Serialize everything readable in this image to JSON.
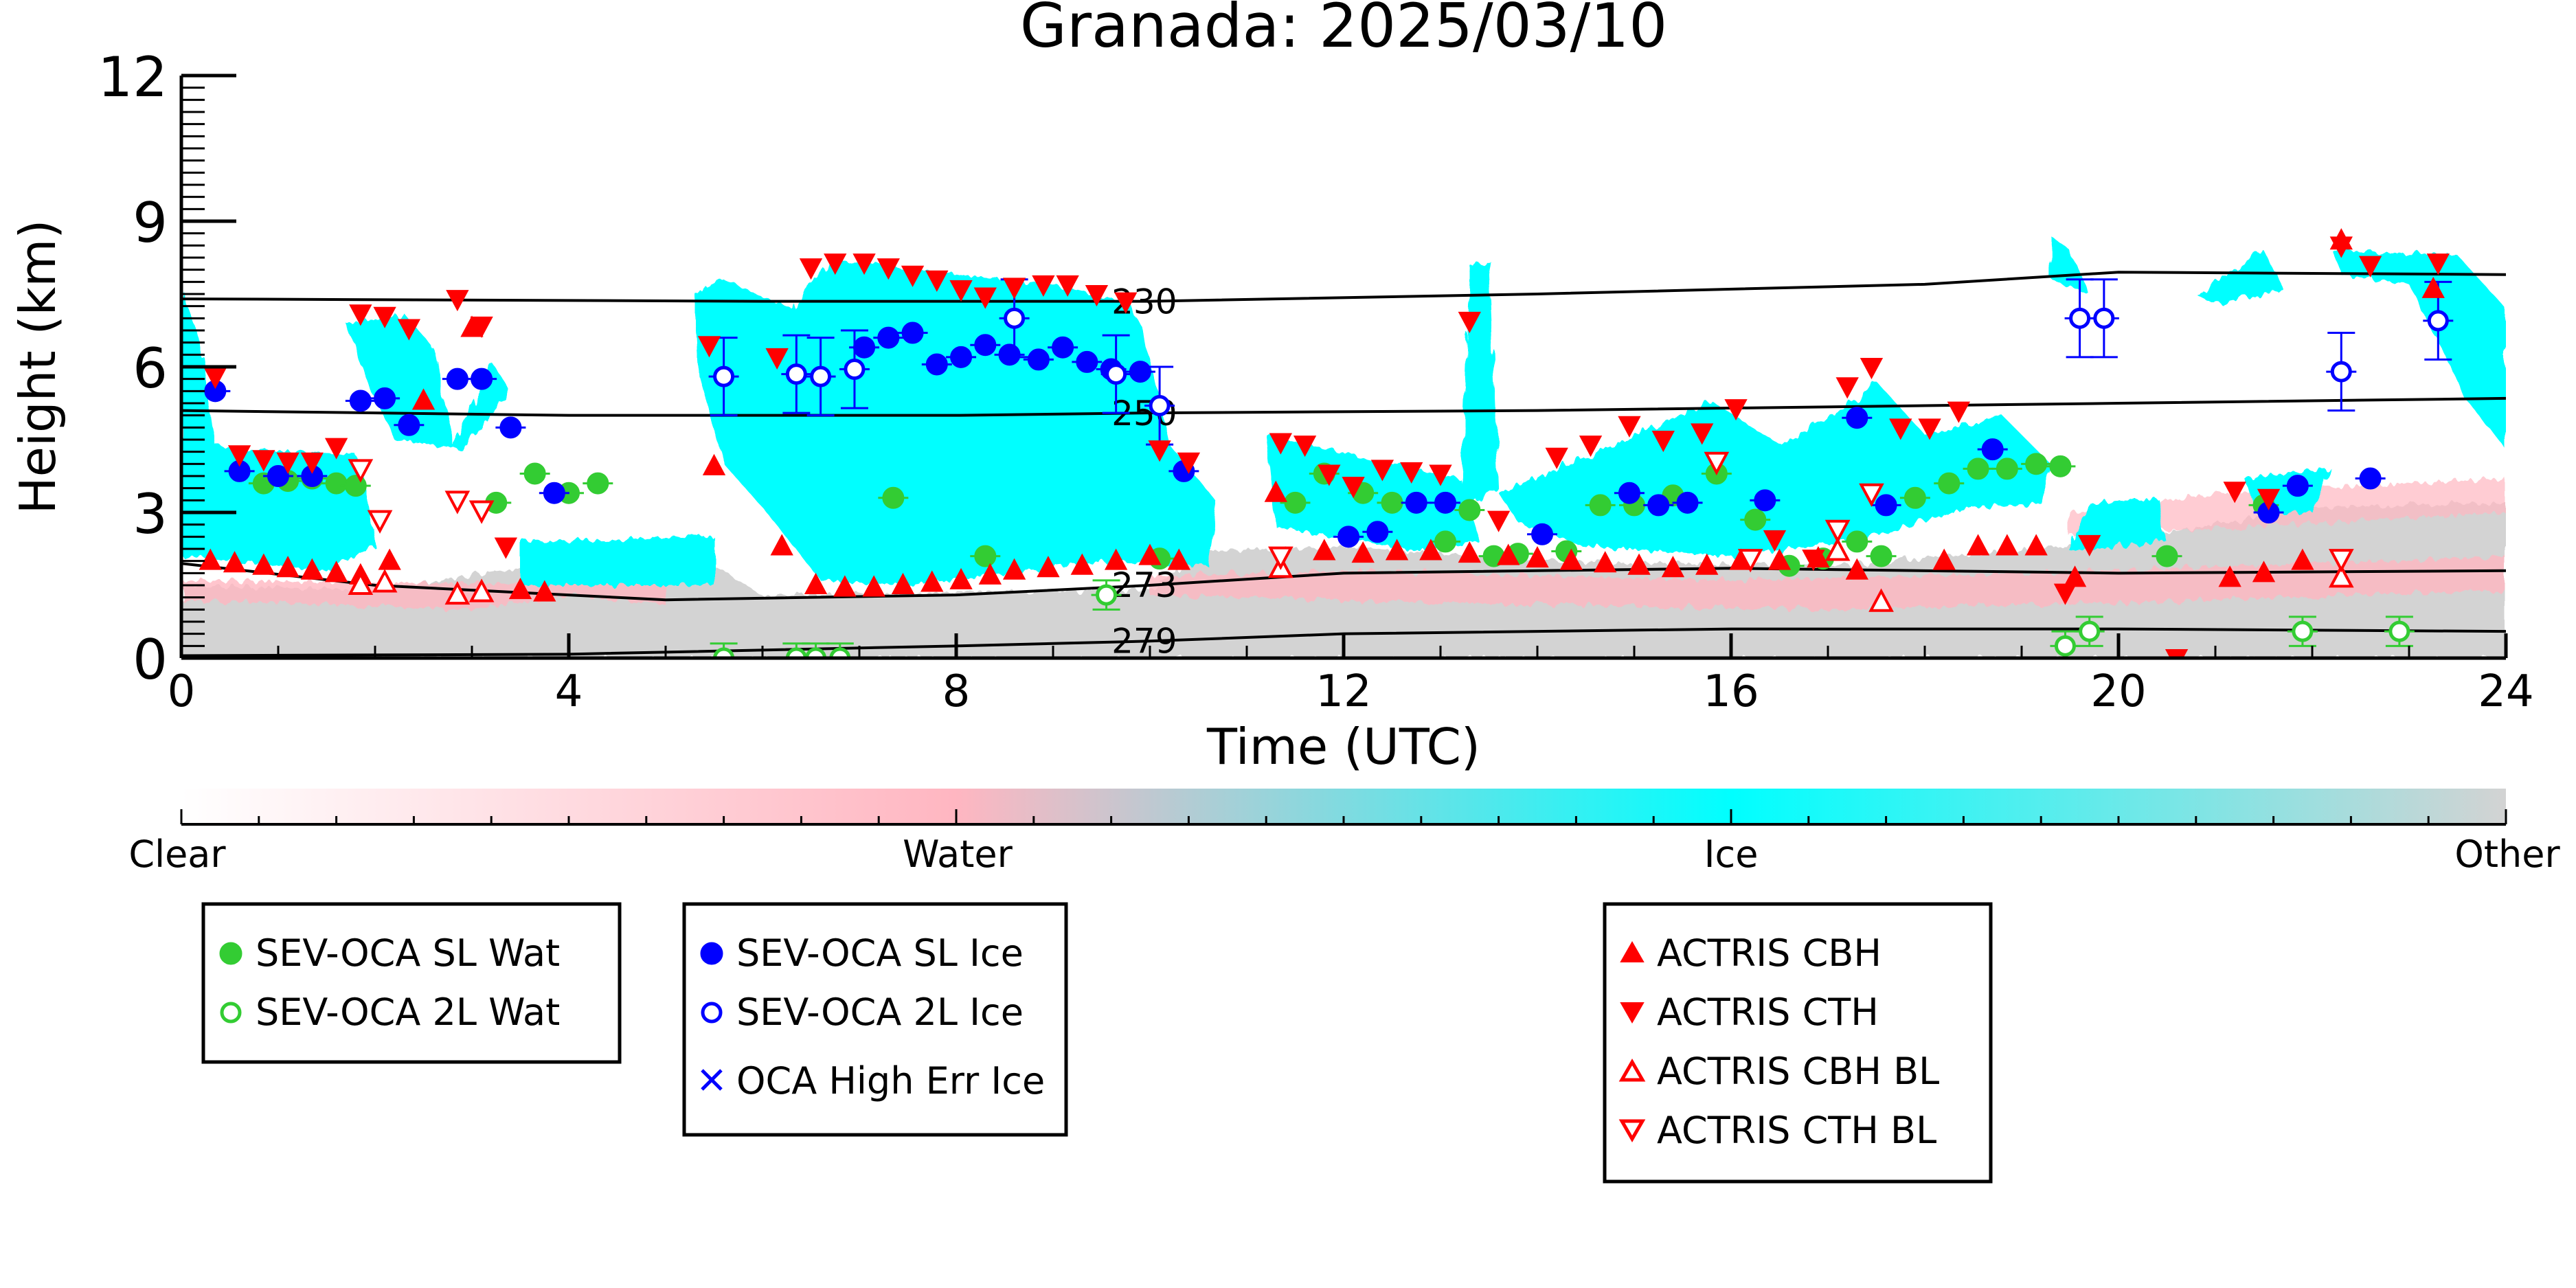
{
  "title": "Granada: 2025/03/10",
  "axes": {
    "xlabel": "Time (UTC)",
    "ylabel": "Height (km)",
    "xlim": [
      0,
      24
    ],
    "ylim": [
      0,
      12
    ],
    "xticks": [
      "0",
      "4",
      "8",
      "12",
      "16",
      "20",
      "24"
    ],
    "yticks": [
      "0",
      "3",
      "6",
      "9",
      "12"
    ]
  },
  "colorbar": {
    "labels": [
      "Clear",
      "Water",
      "Ice",
      "Other"
    ],
    "colors": {
      "Clear": "#ffffff",
      "Water": "#ffb6c1",
      "Ice": "#00ffff",
      "Other": "#d3d3d3"
    }
  },
  "legends": {
    "water": [
      "SEV-OCA SL Wat",
      "SEV-OCA 2L Wat"
    ],
    "ice": [
      "SEV-OCA SL Ice",
      "SEV-OCA 2L Ice",
      "OCA High Err Ice"
    ],
    "actris": [
      "ACTRIS CBH",
      "ACTRIS CTH",
      "ACTRIS CBH BL",
      "ACTRIS CTH BL"
    ]
  },
  "chart_data": {
    "type": "scatter",
    "title": "Granada: 2025/03/10",
    "xlabel": "Time (UTC)",
    "ylabel": "Height (km)",
    "xlim": [
      0,
      24
    ],
    "ylim": [
      0,
      12
    ],
    "background": "cloud classification image (Clear / Water / Ice / Other)",
    "isotherms": [
      {
        "label": "230",
        "x": [
          0,
          6,
          10,
          14,
          18,
          20,
          24
        ],
        "y": [
          7.4,
          7.35,
          7.35,
          7.5,
          7.7,
          7.95,
          7.9
        ]
      },
      {
        "label": "250",
        "x": [
          0,
          4,
          8,
          10,
          14,
          18,
          20,
          24
        ],
        "y": [
          5.1,
          5.0,
          5.0,
          5.05,
          5.1,
          5.2,
          5.25,
          5.35
        ]
      },
      {
        "label": "273",
        "x": [
          0,
          2,
          5,
          8,
          10,
          12,
          16,
          20,
          24
        ],
        "y": [
          1.95,
          1.5,
          1.2,
          1.3,
          1.5,
          1.75,
          1.85,
          1.75,
          1.8
        ]
      },
      {
        "label": "279",
        "x": [
          0,
          4,
          8,
          10,
          12,
          16,
          20,
          24
        ],
        "y": [
          0.05,
          0.08,
          0.25,
          0.35,
          0.5,
          0.6,
          0.6,
          0.55
        ]
      }
    ],
    "series": [
      {
        "name": "SEV-OCA SL Wat",
        "color": "#33cc33",
        "marker": "filled-circle",
        "x": [
          0.85,
          1.1,
          1.35,
          1.6,
          1.8,
          3.25,
          3.65,
          4.0,
          4.3,
          7.35,
          8.3,
          10.1,
          11.5,
          11.8,
          12.2,
          12.5,
          13.05,
          13.3,
          13.55,
          13.8,
          14.3,
          14.65,
          15.0,
          15.4,
          15.85,
          16.25,
          16.6,
          16.95,
          17.3,
          17.55,
          17.9,
          18.25,
          18.55,
          18.85,
          19.15,
          19.4,
          20.5,
          21.5
        ],
        "y": [
          3.6,
          3.65,
          3.7,
          3.6,
          3.55,
          3.2,
          3.8,
          3.4,
          3.6,
          3.3,
          2.1,
          2.05,
          3.2,
          3.8,
          3.4,
          3.2,
          2.4,
          3.05,
          2.1,
          2.15,
          2.2,
          3.15,
          3.15,
          3.35,
          3.8,
          2.85,
          1.9,
          2.05,
          2.4,
          2.1,
          3.3,
          3.6,
          3.9,
          3.9,
          4.0,
          3.95,
          2.1,
          3.15
        ],
        "error": 0.15
      },
      {
        "name": "SEV-OCA 2L Wat",
        "color": "#33cc33",
        "marker": "open-circle",
        "x": [
          5.6,
          6.35,
          6.55,
          6.8,
          9.55,
          19.45,
          19.7,
          21.9,
          22.9
        ],
        "y": [
          0.0,
          0.0,
          0.0,
          0.0,
          1.3,
          0.25,
          0.55,
          0.55,
          0.55
        ],
        "error": 0.3
      },
      {
        "name": "SEV-OCA SL Ice",
        "color": "#0000ff",
        "marker": "filled-circle",
        "x": [
          0.35,
          0.6,
          1.0,
          1.35,
          1.85,
          2.1,
          2.35,
          2.85,
          3.1,
          3.4,
          3.85,
          7.05,
          7.3,
          7.55,
          7.8,
          8.05,
          8.3,
          8.55,
          8.85,
          9.1,
          9.35,
          9.6,
          9.9,
          10.35,
          12.05,
          12.35,
          12.75,
          13.05,
          14.05,
          14.95,
          15.25,
          15.55,
          16.35,
          17.3,
          17.6,
          18.7,
          21.55,
          21.85,
          22.6
        ],
        "y": [
          5.5,
          3.85,
          3.75,
          3.75,
          5.3,
          5.35,
          4.8,
          5.75,
          5.75,
          4.75,
          3.4,
          6.4,
          6.6,
          6.7,
          6.05,
          6.2,
          6.45,
          6.25,
          6.15,
          6.4,
          6.1,
          5.95,
          5.9,
          3.85,
          2.5,
          2.6,
          3.2,
          3.2,
          2.55,
          3.4,
          3.15,
          3.2,
          3.25,
          4.95,
          3.15,
          4.3,
          3.0,
          3.55,
          3.7
        ],
        "error": 0.15
      },
      {
        "name": "SEV-OCA 2L Ice",
        "color": "#0000ff",
        "marker": "open-circle",
        "x": [
          5.6,
          6.35,
          6.6,
          6.95,
          8.6,
          9.65,
          10.1,
          19.6,
          19.85,
          22.3,
          23.3
        ],
        "y": [
          5.8,
          5.85,
          5.8,
          5.95,
          7.0,
          5.85,
          5.2,
          7.0,
          7.0,
          5.9,
          6.95
        ],
        "error": 0.8
      },
      {
        "name": "OCA High Err Ice",
        "color": "#0000ff",
        "marker": "x",
        "x": [],
        "y": []
      },
      {
        "name": "ACTRIS CBH",
        "color": "#ff0000",
        "marker": "filled-triangle-up",
        "x": [
          0.3,
          0.55,
          0.85,
          1.1,
          1.35,
          1.6,
          1.85,
          2.15,
          2.5,
          3.0,
          3.5,
          3.75,
          5.5,
          6.2,
          6.55,
          6.85,
          7.15,
          7.45,
          7.75,
          8.05,
          8.35,
          8.6,
          8.95,
          9.3,
          9.65,
          10.0,
          10.3,
          11.3,
          11.8,
          12.2,
          12.55,
          12.9,
          13.3,
          13.7,
          14.0,
          14.35,
          14.7,
          15.05,
          15.4,
          15.75,
          16.1,
          16.5,
          16.9,
          17.3,
          18.2,
          18.55,
          18.85,
          19.15,
          19.55,
          21.15,
          21.5,
          21.9,
          22.3,
          23.25
        ],
        "y": [
          2.0,
          1.95,
          1.9,
          1.85,
          1.8,
          1.75,
          1.7,
          2.0,
          5.3,
          6.8,
          1.4,
          1.35,
          3.95,
          2.3,
          1.5,
          1.45,
          1.45,
          1.5,
          1.55,
          1.6,
          1.7,
          1.8,
          1.85,
          1.9,
          2.0,
          2.1,
          2.0,
          3.4,
          2.2,
          2.15,
          2.2,
          2.2,
          2.15,
          2.1,
          2.05,
          2.0,
          1.95,
          1.9,
          1.85,
          1.9,
          2.0,
          2.0,
          2.05,
          1.8,
          2.0,
          2.3,
          2.3,
          2.3,
          1.65,
          1.65,
          1.75,
          2.0,
          8.6,
          7.6
        ],
        "size": 1
      },
      {
        "name": "ACTRIS CTH",
        "color": "#ff0000",
        "marker": "filled-triangle-down",
        "x": [
          0.35,
          0.6,
          0.85,
          1.1,
          1.35,
          1.6,
          1.85,
          2.1,
          2.35,
          2.85,
          3.1,
          3.35,
          5.45,
          6.15,
          6.5,
          6.75,
          7.05,
          7.3,
          7.55,
          7.8,
          8.05,
          8.3,
          8.6,
          8.9,
          9.15,
          9.45,
          9.75,
          10.1,
          10.4,
          11.35,
          11.6,
          11.85,
          12.1,
          12.4,
          12.7,
          13.0,
          13.3,
          13.6,
          14.2,
          14.55,
          14.95,
          15.3,
          15.7,
          16.05,
          16.45,
          16.85,
          17.2,
          17.45,
          17.75,
          18.05,
          18.35,
          19.45,
          19.7,
          20.6,
          21.2,
          21.55,
          22.3,
          22.6,
          23.3
        ],
        "y": [
          5.8,
          4.2,
          4.1,
          4.05,
          4.05,
          4.35,
          7.1,
          7.05,
          6.8,
          7.4,
          6.85,
          2.3,
          6.45,
          6.2,
          8.05,
          8.15,
          8.15,
          8.05,
          7.9,
          7.8,
          7.6,
          7.45,
          7.65,
          7.7,
          7.7,
          7.5,
          7.35,
          4.3,
          4.05,
          4.45,
          4.4,
          3.8,
          3.55,
          3.9,
          3.85,
          3.8,
          6.95,
          2.85,
          4.15,
          4.4,
          4.8,
          4.5,
          4.65,
          5.15,
          2.45,
          2.05,
          5.6,
          6.0,
          4.75,
          4.75,
          5.1,
          1.35,
          2.35,
          0.0,
          3.45,
          3.3,
          8.5,
          8.1,
          8.15
        ],
        "size": 1
      },
      {
        "name": "ACTRIS CBH BL",
        "color": "#ff0000",
        "marker": "open-triangle-up",
        "x": [
          1.85,
          2.1,
          2.85,
          3.1,
          11.35,
          17.1,
          17.55,
          22.3
        ],
        "y": [
          1.5,
          1.55,
          1.3,
          1.35,
          1.85,
          2.2,
          1.15,
          1.65
        ],
        "size": 1
      },
      {
        "name": "ACTRIS CTH BL",
        "color": "#ff0000",
        "marker": "open-triangle-down",
        "x": [
          1.85,
          2.05,
          2.85,
          3.1,
          11.35,
          15.85,
          16.2,
          17.1,
          17.45,
          22.3
        ],
        "y": [
          3.9,
          2.85,
          3.25,
          3.05,
          2.1,
          4.05,
          2.05,
          2.65,
          3.4,
          2.05
        ],
        "size": 1
      }
    ],
    "legend_placement": "below-plot, three boxes"
  }
}
